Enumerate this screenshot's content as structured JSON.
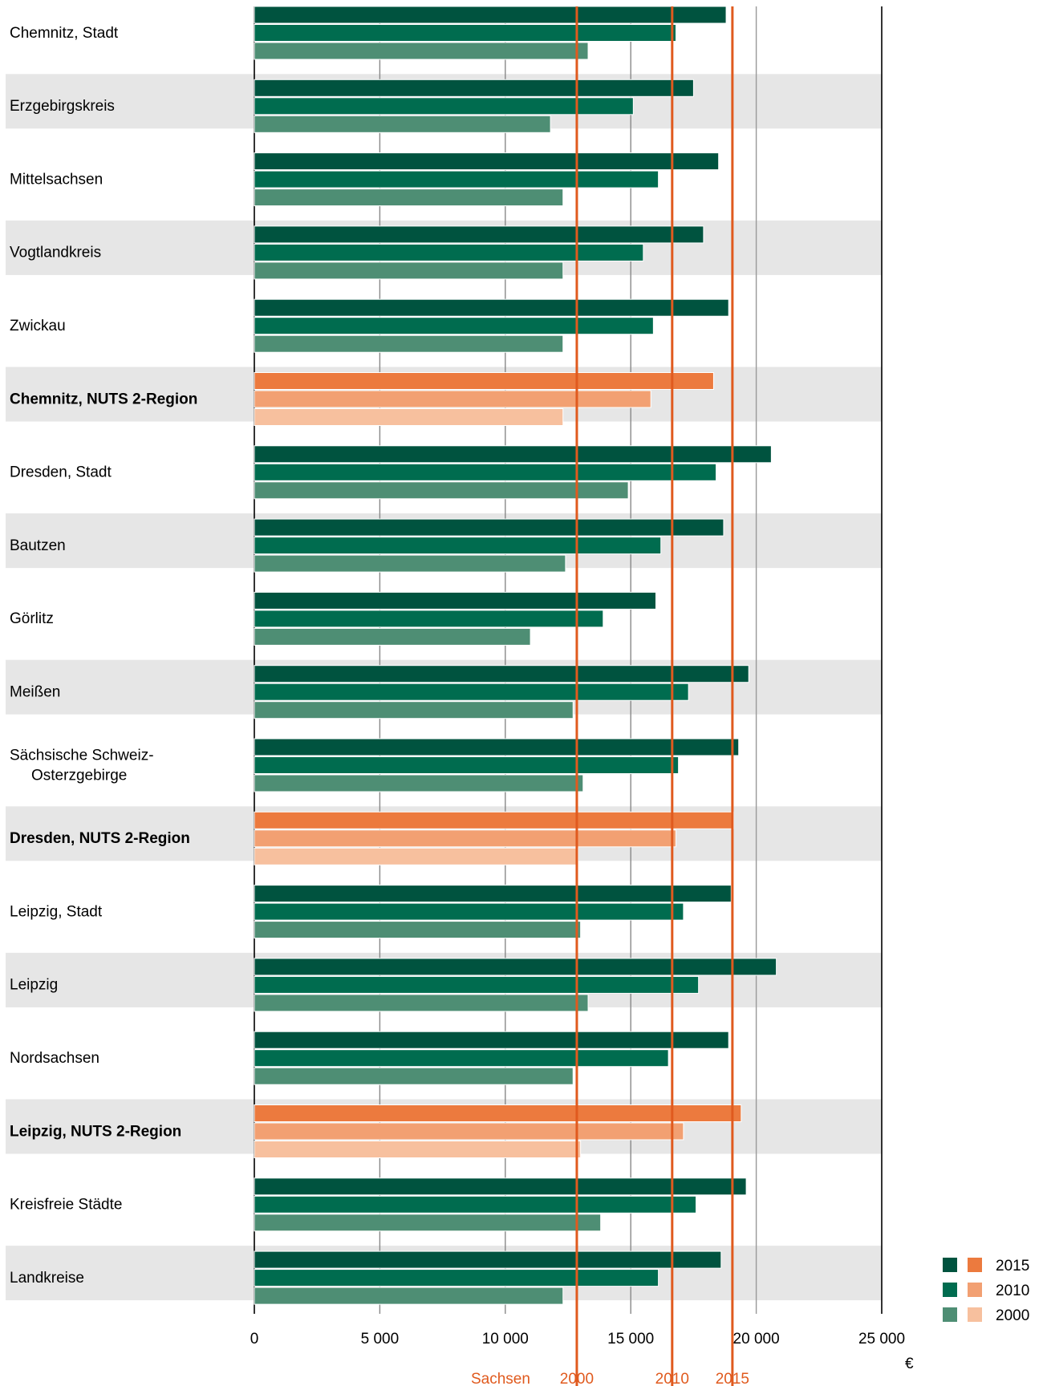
{
  "chart_data": {
    "type": "bar",
    "orientation": "horizontal",
    "unit": "€",
    "xlim": [
      0,
      25000
    ],
    "x_ticks": [
      {
        "value": 0,
        "label": "0"
      },
      {
        "value": 5000,
        "label": "5 000"
      },
      {
        "value": 10000,
        "label": "10 000"
      },
      {
        "value": 15000,
        "label": "15 000"
      },
      {
        "value": 20000,
        "label": "20 000"
      },
      {
        "value": 25000,
        "label": "25 000"
      }
    ],
    "colors": {
      "green": [
        "#00533f",
        "#006c4f",
        "#4e8e74"
      ],
      "orange": [
        "#ec7a3e",
        "#f2a072",
        "#f7c09e"
      ],
      "reference_line": "#e05a1e",
      "reference_label": "#e05a1e",
      "band": "#e6e6e6"
    },
    "legend": {
      "position": "bottom-right",
      "items": [
        {
          "label": "2015",
          "green": "#00533f",
          "orange": "#ec7a3e"
        },
        {
          "label": "2010",
          "green": "#006c4f",
          "orange": "#f2a072"
        },
        {
          "label": "2000",
          "green": "#4e8e74",
          "orange": "#f7c09e"
        }
      ]
    },
    "series_names": [
      "2015",
      "2010",
      "2000"
    ],
    "categories": [
      {
        "label": "Chemnitz, Stadt",
        "bold": false,
        "orange": false,
        "values": [
          18800,
          16800,
          13300
        ]
      },
      {
        "label": "Erzgebirgskreis",
        "bold": false,
        "orange": false,
        "values": [
          17500,
          15100,
          11800
        ]
      },
      {
        "label": "Mittelsachsen",
        "bold": false,
        "orange": false,
        "values": [
          18500,
          16100,
          12300
        ]
      },
      {
        "label": "Vogtlandkreis",
        "bold": false,
        "orange": false,
        "values": [
          17900,
          15500,
          12300
        ]
      },
      {
        "label": "Zwickau",
        "bold": false,
        "orange": false,
        "values": [
          18900,
          15900,
          12300
        ]
      },
      {
        "label": "Chemnitz, NUTS 2-Region",
        "bold": true,
        "orange": true,
        "values": [
          18300,
          15800,
          12300
        ]
      },
      {
        "label": "Dresden, Stadt",
        "bold": false,
        "orange": false,
        "values": [
          20600,
          18400,
          14900
        ]
      },
      {
        "label": "Bautzen",
        "bold": false,
        "orange": false,
        "values": [
          18700,
          16200,
          12400
        ]
      },
      {
        "label": "Görlitz",
        "bold": false,
        "orange": false,
        "values": [
          16000,
          13900,
          11000
        ]
      },
      {
        "label": "Meißen",
        "bold": false,
        "orange": false,
        "values": [
          19700,
          17300,
          12700
        ]
      },
      {
        "label": "Sächsische Schweiz-\nOsterzgebirge",
        "bold": false,
        "orange": false,
        "values": [
          19300,
          16900,
          13100
        ]
      },
      {
        "label": "Dresden, NUTS 2-Region",
        "bold": true,
        "orange": true,
        "values": [
          19100,
          16800,
          12900
        ]
      },
      {
        "label": "Leipzig, Stadt",
        "bold": false,
        "orange": false,
        "values": [
          19000,
          17100,
          13000
        ]
      },
      {
        "label": "Leipzig",
        "bold": false,
        "orange": false,
        "values": [
          20800,
          17700,
          13300
        ]
      },
      {
        "label": "Nordsachsen",
        "bold": false,
        "orange": false,
        "values": [
          18900,
          16500,
          12700
        ]
      },
      {
        "label": "Leipzig, NUTS 2-Region",
        "bold": true,
        "orange": true,
        "values": [
          19400,
          17100,
          13000
        ]
      },
      {
        "label": "Kreisfreie Städte",
        "bold": false,
        "orange": false,
        "values": [
          19600,
          17600,
          13800
        ]
      },
      {
        "label": "Landkreise",
        "bold": false,
        "orange": false,
        "values": [
          18600,
          16100,
          12300
        ]
      }
    ],
    "reference_lines": [
      {
        "label": "2000",
        "value": 12850
      },
      {
        "label": "2010",
        "value": 16650
      },
      {
        "label": "2015",
        "value": 19050
      }
    ],
    "reference_prefix": "Sachsen",
    "grid": true
  }
}
